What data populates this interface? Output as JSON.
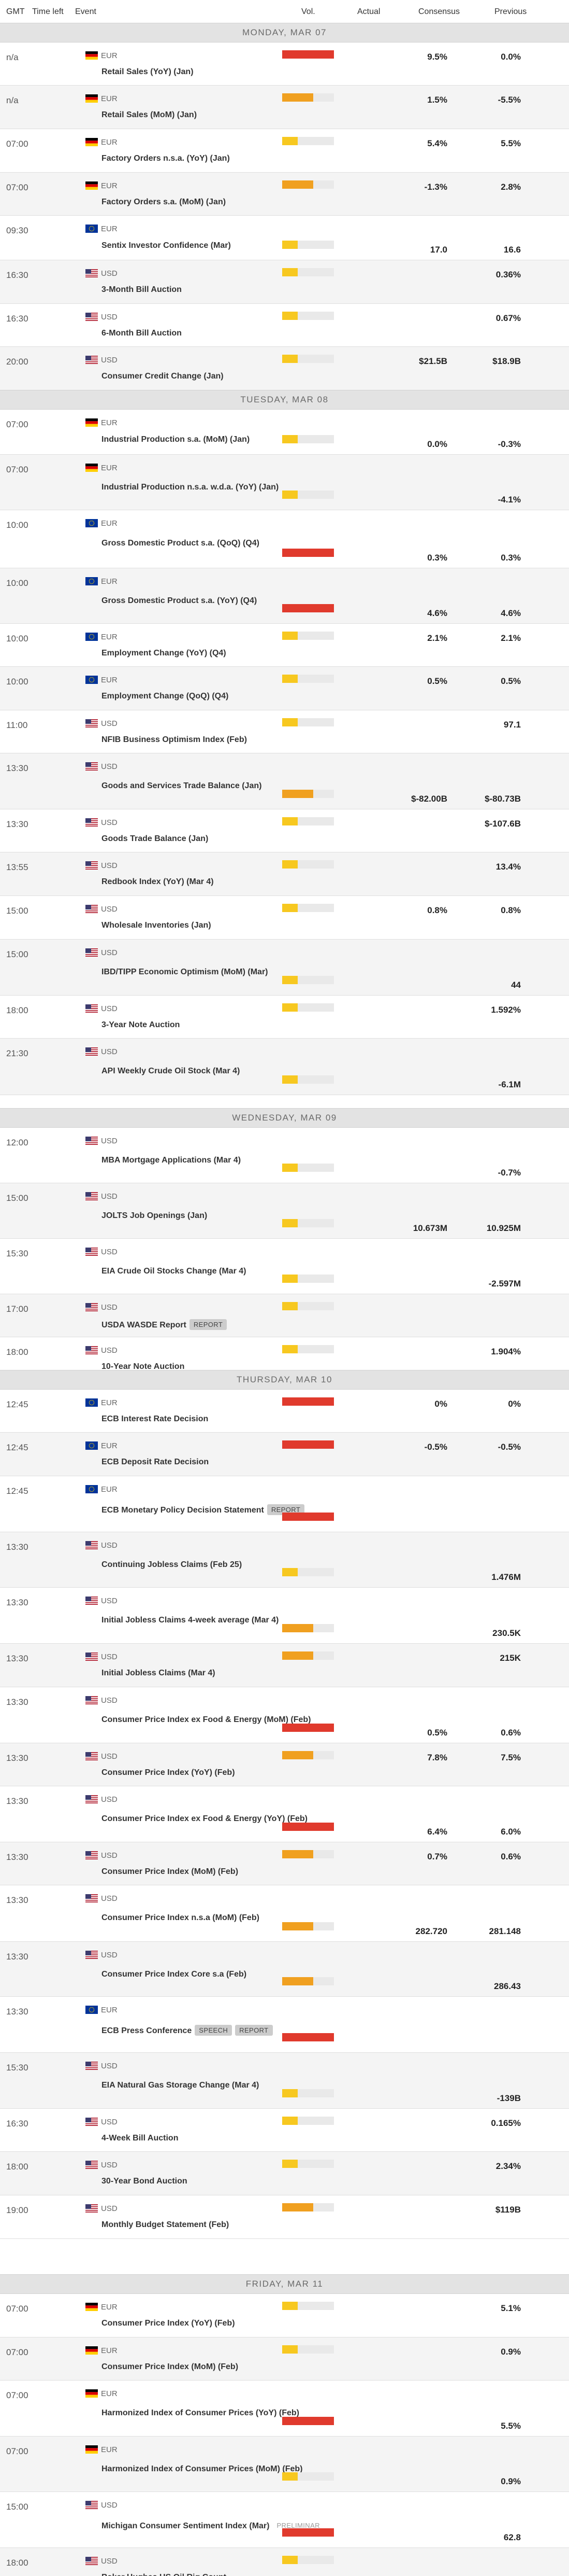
{
  "header": {
    "gmt": "GMT",
    "time_left": "Time left",
    "event": "Event",
    "vol": "Vol.",
    "actual": "Actual",
    "consensus": "Consensus",
    "previous": "Previous"
  },
  "colors": {
    "vol_high": "#e03a2d",
    "vol_med": "#f0a020",
    "vol_low": "#f7c820",
    "vol_empty": "#e9e9e9",
    "day_header_bg": "#e3e3e3",
    "row_alt_bg": "#f4f4f4",
    "badge_bg": "#cccccc"
  },
  "days": [
    {
      "label": "MONDAY, MAR 07",
      "events": [
        {
          "time": "n/a",
          "currency": "EUR",
          "flag": "de",
          "name": "Retail Sales (YoY) (Jan)",
          "volatility": "high",
          "consensus": "9.5%",
          "previous": "0.0%"
        },
        {
          "time": "n/a",
          "currency": "EUR",
          "flag": "de",
          "name": "Retail Sales (MoM) (Jan)",
          "volatility": "medium",
          "consensus": "1.5%",
          "previous": "-5.5%"
        },
        {
          "time": "07:00",
          "currency": "EUR",
          "flag": "de",
          "name": "Factory Orders n.s.a. (YoY) (Jan)",
          "volatility": "low",
          "consensus": "5.4%",
          "previous": "5.5%"
        },
        {
          "time": "07:00",
          "currency": "EUR",
          "flag": "de",
          "name": "Factory Orders s.a. (MoM) (Jan)",
          "volatility": "medium",
          "consensus": "-1.3%",
          "previous": "2.8%"
        },
        {
          "time": "09:30",
          "currency": "EUR",
          "flag": "eu",
          "name": "Sentix Investor Confidence (Mar)",
          "volatility": "low",
          "consensus": "17.0",
          "previous": "16.6"
        },
        {
          "time": "16:30",
          "currency": "USD",
          "flag": "us",
          "name": "3-Month Bill Auction",
          "volatility": "low",
          "consensus": "",
          "previous": "0.36%"
        },
        {
          "time": "16:30",
          "currency": "USD",
          "flag": "us",
          "name": "6-Month Bill Auction",
          "volatility": "low",
          "consensus": "",
          "previous": "0.67%"
        },
        {
          "time": "20:00",
          "currency": "USD",
          "flag": "us",
          "name": "Consumer Credit Change (Jan)",
          "volatility": "low",
          "consensus": "$21.5B",
          "previous": "$18.9B"
        }
      ]
    },
    {
      "label": "TUESDAY, MAR 08",
      "events": [
        {
          "time": "07:00",
          "currency": "EUR",
          "flag": "de",
          "name": "Industrial Production s.a. (MoM) (Jan)",
          "volatility": "low",
          "consensus": "0.0%",
          "previous": "-0.3%"
        },
        {
          "time": "07:00",
          "currency": "EUR",
          "flag": "de",
          "name": "Industrial Production n.s.a. w.d.a. (YoY) (Jan)",
          "volatility": "low",
          "consensus": "",
          "previous": "-4.1%"
        },
        {
          "time": "10:00",
          "currency": "EUR",
          "flag": "eu",
          "name": "Gross Domestic Product s.a. (QoQ) (Q4)",
          "volatility": "high",
          "consensus": "0.3%",
          "previous": "0.3%"
        },
        {
          "time": "10:00",
          "currency": "EUR",
          "flag": "eu",
          "name": "Gross Domestic Product s.a. (YoY) (Q4)",
          "volatility": "high",
          "consensus": "4.6%",
          "previous": "4.6%"
        },
        {
          "time": "10:00",
          "currency": "EUR",
          "flag": "eu",
          "name": "Employment Change (YoY) (Q4)",
          "volatility": "low",
          "consensus": "2.1%",
          "previous": "2.1%"
        },
        {
          "time": "10:00",
          "currency": "EUR",
          "flag": "eu",
          "name": "Employment Change (QoQ) (Q4)",
          "volatility": "low",
          "consensus": "0.5%",
          "previous": "0.5%"
        },
        {
          "time": "11:00",
          "currency": "USD",
          "flag": "us",
          "name": "NFIB Business Optimism Index (Feb)",
          "volatility": "low",
          "consensus": "",
          "previous": "97.1"
        },
        {
          "time": "13:30",
          "currency": "USD",
          "flag": "us",
          "name": "Goods and Services Trade Balance (Jan)",
          "volatility": "medium",
          "consensus": "$-82.00B",
          "previous": "$-80.73B"
        },
        {
          "time": "13:30",
          "currency": "USD",
          "flag": "us",
          "name": "Goods Trade Balance (Jan)",
          "volatility": "low",
          "consensus": "",
          "previous": "$-107.6B"
        },
        {
          "time": "13:55",
          "currency": "USD",
          "flag": "us",
          "name": "Redbook Index (YoY) (Mar 4)",
          "volatility": "low",
          "consensus": "",
          "previous": "13.4%"
        },
        {
          "time": "15:00",
          "currency": "USD",
          "flag": "us",
          "name": "Wholesale Inventories (Jan)",
          "volatility": "low",
          "consensus": "0.8%",
          "previous": "0.8%"
        },
        {
          "time": "15:00",
          "currency": "USD",
          "flag": "us",
          "name": "IBD/TIPP Economic Optimism (MoM) (Mar)",
          "volatility": "low",
          "consensus": "",
          "previous": "44"
        },
        {
          "time": "18:00",
          "currency": "USD",
          "flag": "us",
          "name": "3-Year Note Auction",
          "volatility": "low",
          "consensus": "",
          "previous": "1.592%"
        },
        {
          "time": "21:30",
          "currency": "USD",
          "flag": "us",
          "name": "API Weekly Crude Oil Stock (Mar 4)",
          "volatility": "low",
          "consensus": "",
          "previous": "-6.1M"
        }
      ]
    },
    {
      "label": "WEDNESDAY, MAR 09",
      "events": [
        {
          "time": "12:00",
          "currency": "USD",
          "flag": "us",
          "name": "MBA Mortgage Applications (Mar 4)",
          "volatility": "low",
          "consensus": "",
          "previous": "-0.7%"
        },
        {
          "time": "15:00",
          "currency": "USD",
          "flag": "us",
          "name": "JOLTS Job Openings (Jan)",
          "volatility": "low",
          "consensus": "10.673M",
          "previous": "10.925M"
        },
        {
          "time": "15:30",
          "currency": "USD",
          "flag": "us",
          "name": "EIA Crude Oil Stocks Change (Mar 4)",
          "volatility": "low",
          "consensus": "",
          "previous": "-2.597M"
        },
        {
          "time": "17:00",
          "currency": "USD",
          "flag": "us",
          "name": "USDA WASDE Report",
          "badges": [
            "REPORT"
          ],
          "volatility": "low",
          "consensus": "",
          "previous": ""
        },
        {
          "time": "18:00",
          "currency": "USD",
          "flag": "us",
          "name": "10-Year Note Auction",
          "volatility": "low",
          "consensus": "",
          "previous": "1.904%"
        }
      ]
    },
    {
      "label": "THURSDAY, MAR 10",
      "events": [
        {
          "time": "12:45",
          "currency": "EUR",
          "flag": "eu",
          "name": "ECB Interest Rate Decision",
          "volatility": "high",
          "consensus": "0%",
          "previous": "0%"
        },
        {
          "time": "12:45",
          "currency": "EUR",
          "flag": "eu",
          "name": "ECB Deposit Rate Decision",
          "volatility": "high",
          "consensus": "-0.5%",
          "previous": "-0.5%"
        },
        {
          "time": "12:45",
          "currency": "EUR",
          "flag": "eu",
          "name": "ECB Monetary Policy Decision Statement",
          "badges": [
            "REPORT"
          ],
          "volatility": "high",
          "consensus": "",
          "previous": ""
        },
        {
          "time": "13:30",
          "currency": "USD",
          "flag": "us",
          "name": "Continuing Jobless Claims (Feb 25)",
          "volatility": "low",
          "consensus": "",
          "previous": "1.476M"
        },
        {
          "time": "13:30",
          "currency": "USD",
          "flag": "us",
          "name": "Initial Jobless Claims 4-week average (Mar 4)",
          "volatility": "medium",
          "consensus": "",
          "previous": "230.5K"
        },
        {
          "time": "13:30",
          "currency": "USD",
          "flag": "us",
          "name": "Initial Jobless Claims (Mar 4)",
          "volatility": "medium",
          "consensus": "",
          "previous": "215K"
        },
        {
          "time": "13:30",
          "currency": "USD",
          "flag": "us",
          "name": "Consumer Price Index ex Food & Energy (MoM) (Feb)",
          "volatility": "high",
          "consensus": "0.5%",
          "previous": "0.6%"
        },
        {
          "time": "13:30",
          "currency": "USD",
          "flag": "us",
          "name": "Consumer Price Index (YoY) (Feb)",
          "volatility": "medium",
          "consensus": "7.8%",
          "previous": "7.5%"
        },
        {
          "time": "13:30",
          "currency": "USD",
          "flag": "us",
          "name": "Consumer Price Index ex Food & Energy (YoY) (Feb)",
          "volatility": "high",
          "consensus": "6.4%",
          "previous": "6.0%"
        },
        {
          "time": "13:30",
          "currency": "USD",
          "flag": "us",
          "name": "Consumer Price Index (MoM) (Feb)",
          "volatility": "medium",
          "consensus": "0.7%",
          "previous": "0.6%"
        },
        {
          "time": "13:30",
          "currency": "USD",
          "flag": "us",
          "name": "Consumer Price Index n.s.a (MoM) (Feb)",
          "volatility": "medium",
          "consensus": "282.720",
          "previous": "281.148"
        },
        {
          "time": "13:30",
          "currency": "USD",
          "flag": "us",
          "name": "Consumer Price Index Core s.a (Feb)",
          "volatility": "medium",
          "consensus": "",
          "previous": "286.43"
        },
        {
          "time": "13:30",
          "currency": "EUR",
          "flag": "eu",
          "name": "ECB Press Conference",
          "badges": [
            "SPEECH",
            "REPORT"
          ],
          "volatility": "high",
          "consensus": "",
          "previous": ""
        },
        {
          "time": "15:30",
          "currency": "USD",
          "flag": "us",
          "name": "EIA Natural Gas Storage Change (Mar 4)",
          "volatility": "low",
          "consensus": "",
          "previous": "-139B"
        },
        {
          "time": "16:30",
          "currency": "USD",
          "flag": "us",
          "name": "4-Week Bill Auction",
          "volatility": "low",
          "consensus": "",
          "previous": "0.165%"
        },
        {
          "time": "18:00",
          "currency": "USD",
          "flag": "us",
          "name": "30-Year Bond Auction",
          "volatility": "low",
          "consensus": "",
          "previous": "2.34%"
        },
        {
          "time": "19:00",
          "currency": "USD",
          "flag": "us",
          "name": "Monthly Budget Statement (Feb)",
          "volatility": "medium",
          "consensus": "",
          "previous": "$119B"
        }
      ]
    },
    {
      "label": "FRIDAY, MAR 11",
      "events": [
        {
          "time": "07:00",
          "currency": "EUR",
          "flag": "de",
          "name": "Consumer Price Index (YoY) (Feb)",
          "volatility": "low",
          "consensus": "",
          "previous": "5.1%"
        },
        {
          "time": "07:00",
          "currency": "EUR",
          "flag": "de",
          "name": "Consumer Price Index (MoM) (Feb)",
          "volatility": "low",
          "consensus": "",
          "previous": "0.9%"
        },
        {
          "time": "07:00",
          "currency": "EUR",
          "flag": "de",
          "name": "Harmonized Index of Consumer Prices (YoY) (Feb)",
          "volatility": "high",
          "consensus": "",
          "previous": "5.5%"
        },
        {
          "time": "07:00",
          "currency": "EUR",
          "flag": "de",
          "name": "Harmonized Index of Consumer Prices (MoM) (Feb)",
          "volatility": "low",
          "consensus": "",
          "previous": "0.9%"
        },
        {
          "time": "15:00",
          "currency": "USD",
          "flag": "us",
          "name": "Michigan Consumer Sentiment Index (Mar)",
          "badges": [
            "PRELIMINAR"
          ],
          "volatility": "high",
          "consensus": "",
          "previous": "62.8"
        },
        {
          "time": "18:00",
          "currency": "USD",
          "flag": "us",
          "name": "Baker Hughes US Oil Rig Count",
          "volatility": "low",
          "consensus": "",
          "previous": ""
        }
      ]
    }
  ]
}
